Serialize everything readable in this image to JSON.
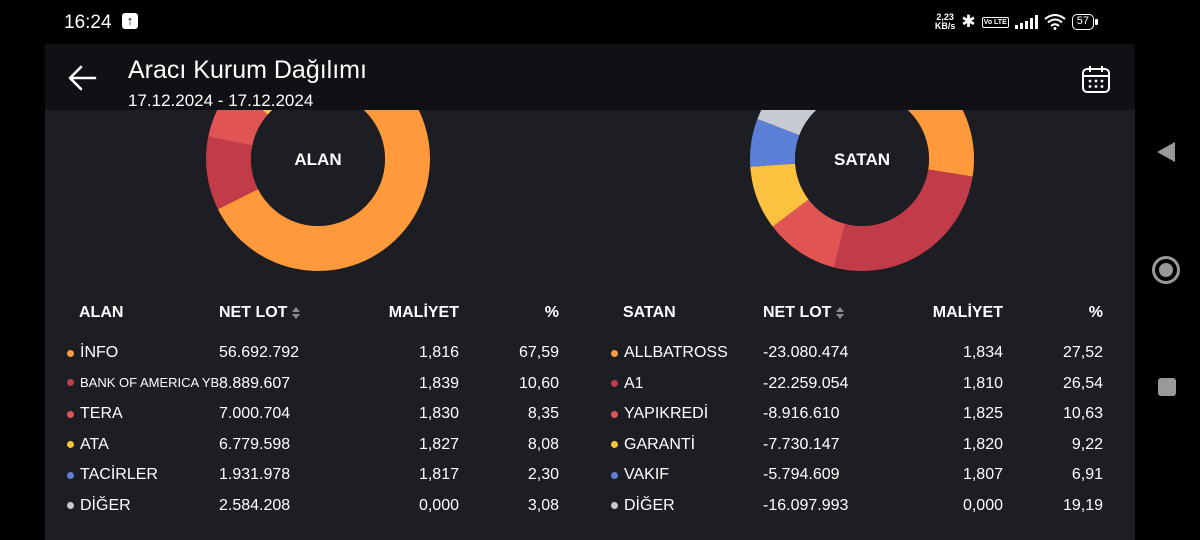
{
  "status": {
    "time": "16:24",
    "speed_value": "2,23",
    "speed_unit": "KB/s",
    "volte": "Vo LTE",
    "battery": "57"
  },
  "header": {
    "title": "Aracı Kurum Dağılımı",
    "subtitle": "17.12.2024 - 17.12.2024"
  },
  "colors": {
    "bg": "#1c1e24",
    "header": "#0f1115",
    "orange": "#ff9a3c",
    "darkred": "#c23b48",
    "red": "#e05454",
    "yellow": "#fcc13f",
    "blue": "#5b7fd6",
    "gray": "#c7cbd1"
  },
  "donuts": {
    "alan_label": "ALAN",
    "satan_label": "SATAN"
  },
  "alan": {
    "headers": {
      "name": "ALAN",
      "net": "NET LOT",
      "mal": "MALİYET",
      "pct": "%"
    },
    "rows": [
      {
        "name": "İNFO",
        "net": "56.692.792",
        "mal": "1,816",
        "pct": "67,59",
        "pct_value": 67.59,
        "color": "#ff9a3c"
      },
      {
        "name": "BANK OF AMERICA YB",
        "net": "8.889.607",
        "mal": "1,839",
        "pct": "10,60",
        "pct_value": 10.6,
        "color": "#c23b48"
      },
      {
        "name": "TERA",
        "net": "7.000.704",
        "mal": "1,830",
        "pct": "8,35",
        "pct_value": 8.35,
        "color": "#e05454"
      },
      {
        "name": "ATA",
        "net": "6.779.598",
        "mal": "1,827",
        "pct": "8,08",
        "pct_value": 8.08,
        "color": "#fcc13f"
      },
      {
        "name": "TACİRLER",
        "net": "1.931.978",
        "mal": "1,817",
        "pct": "2,30",
        "pct_value": 2.3,
        "color": "#5b7fd6"
      },
      {
        "name": "DİĞER",
        "net": "2.584.208",
        "mal": "0,000",
        "pct": "3,08",
        "pct_value": 3.08,
        "color": "#c7cbd1"
      }
    ]
  },
  "satan": {
    "headers": {
      "name": "SATAN",
      "net": "NET LOT",
      "mal": "MALİYET",
      "pct": "%"
    },
    "rows": [
      {
        "name": "ALLBATROSS",
        "net": "-23.080.474",
        "mal": "1,834",
        "pct": "27,52",
        "pct_value": 27.52,
        "color": "#ff9a3c"
      },
      {
        "name": "A1",
        "net": "-22.259.054",
        "mal": "1,810",
        "pct": "26,54",
        "pct_value": 26.54,
        "color": "#c23b48"
      },
      {
        "name": "YAPIKREDİ",
        "net": "-8.916.610",
        "mal": "1,825",
        "pct": "10,63",
        "pct_value": 10.63,
        "color": "#e05454"
      },
      {
        "name": "GARANTİ",
        "net": "-7.730.147",
        "mal": "1,820",
        "pct": "9,22",
        "pct_value": 9.22,
        "color": "#fcc13f"
      },
      {
        "name": "VAKIF",
        "net": "-5.794.609",
        "mal": "1,807",
        "pct": "6,91",
        "pct_value": 6.91,
        "color": "#5b7fd6"
      },
      {
        "name": "DİĞER",
        "net": "-16.097.993",
        "mal": "0,000",
        "pct": "19,19",
        "pct_value": 19.19,
        "color": "#c7cbd1"
      }
    ]
  }
}
